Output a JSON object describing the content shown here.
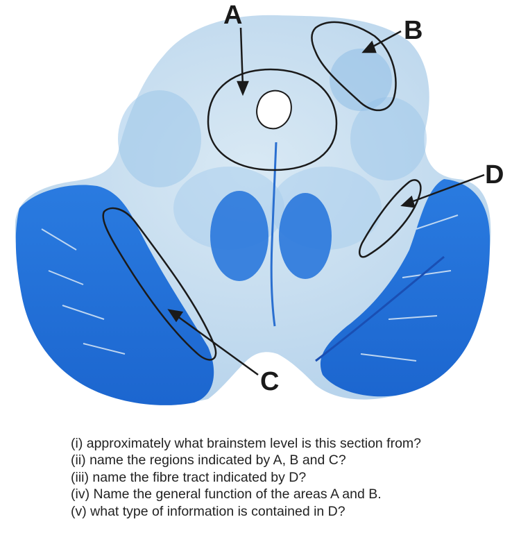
{
  "labels": {
    "a": "A",
    "b": "B",
    "c": "C",
    "d": "D"
  },
  "questions": [
    "(i) approximately what brainstem level is this section from?",
    "(ii) name the regions indicated by A, B and C?",
    "(iii) name the fibre tract indicated by D?",
    "(iv) Name the general function of the areas A and B.",
    "(v) what type of information is contained in D?"
  ],
  "colors": {
    "pale_tissue": "#c9dff0",
    "light_blue": "#8fbde6",
    "deep_blue": "#1e6fd6",
    "outline": "#1a1a1a"
  }
}
